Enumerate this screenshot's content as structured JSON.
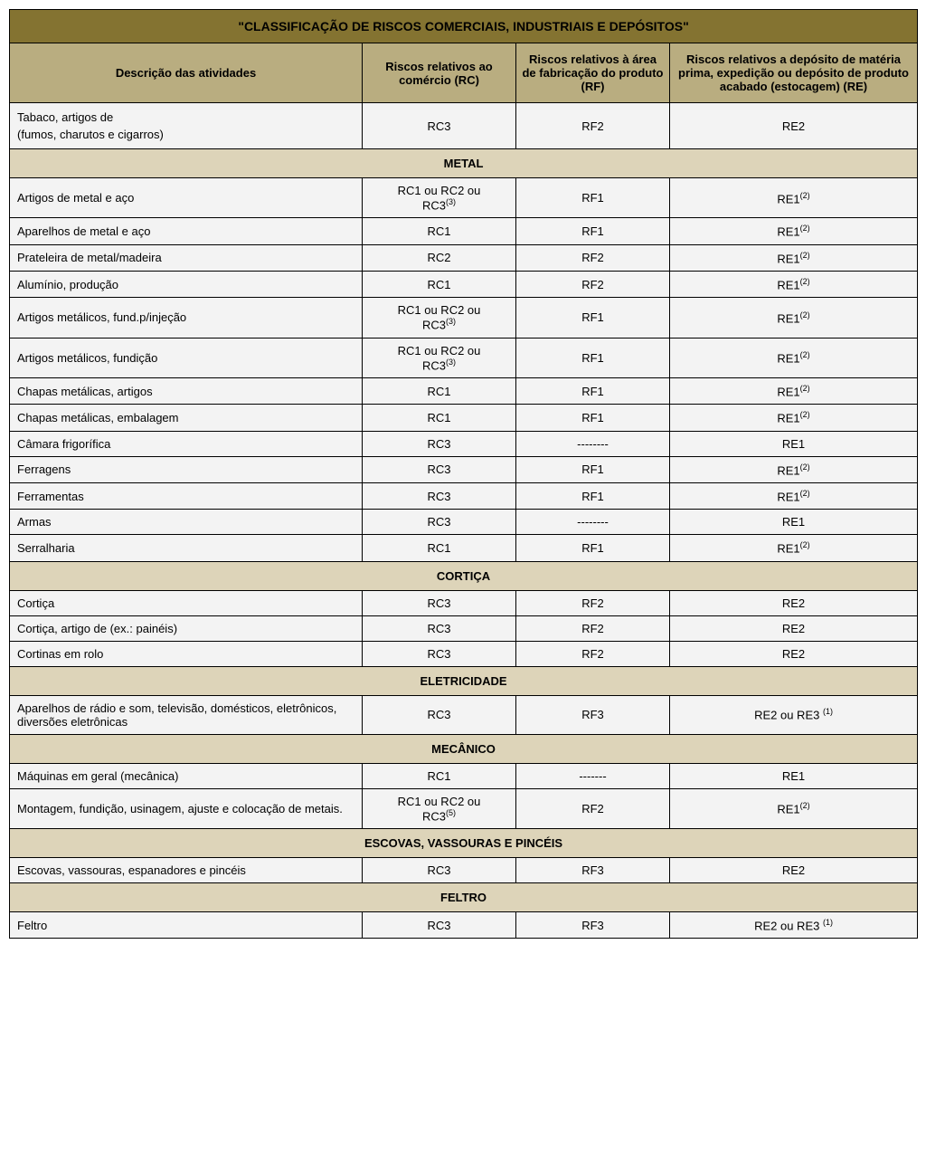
{
  "colors": {
    "title_bg": "#847331",
    "header_bg": "#b9ad80",
    "section_bg": "#ddd4b9",
    "row_bg": "#f3f3f3",
    "border": "#000000",
    "text": "#000000"
  },
  "title": "\"CLASSIFICAÇÃO DE RISCOS COMERCIAIS, INDUSTRIAIS E DEPÓSITOS\"",
  "columns": {
    "desc": "Descrição das atividades",
    "rc": "Riscos relativos ao comércio (RC)",
    "rf": "Riscos relativos à área de fabricação do produto (RF)",
    "re": "Riscos relativos a depósito de matéria prima, expedição ou depósito de produto acabado (estocagem) (RE)"
  },
  "widths": {
    "desc": 390,
    "rc": 170,
    "rf": 170,
    "re": 274
  },
  "body": [
    {
      "type": "row",
      "desc_lines": [
        "Tabaco, artigos de",
        "(fumos, charutos e cigarros)"
      ],
      "rc": "RC3",
      "rf": "RF2",
      "re": "RE2"
    },
    {
      "type": "section",
      "label": "METAL"
    },
    {
      "type": "row",
      "desc": "Artigos de metal e aço",
      "rc_l1": "RC1 ou RC2 ou",
      "rc_l2": "RC3",
      "rc_sup": "(3)",
      "rf": "RF1",
      "re": "RE1",
      "re_sup": "(2)"
    },
    {
      "type": "row",
      "desc": "Aparelhos de metal e aço",
      "rc": "RC1",
      "rf": "RF1",
      "re": "RE1",
      "re_sup": "(2)"
    },
    {
      "type": "row",
      "desc": "Prateleira de metal/madeira",
      "rc": "RC2",
      "rf": "RF2",
      "re": "RE1",
      "re_sup": "(2)"
    },
    {
      "type": "row",
      "desc": "Alumínio, produção",
      "rc": "RC1",
      "rf": "RF2",
      "re": "RE1",
      "re_sup": "(2)"
    },
    {
      "type": "row",
      "desc": "Artigos metálicos, fund.p/injeção",
      "rc_l1": "RC1 ou RC2 ou",
      "rc_l2": "RC3",
      "rc_sup": "(3)",
      "rf": "RF1",
      "re": "RE1",
      "re_sup": "(2)"
    },
    {
      "type": "row",
      "desc": "Artigos metálicos, fundição",
      "rc_l1": "RC1 ou RC2 ou",
      "rc_l2": "RC3",
      "rc_sup": "(3)",
      "rf": "RF1",
      "re": "RE1",
      "re_sup": "(2)"
    },
    {
      "type": "row",
      "desc": "Chapas metálicas, artigos",
      "rc": "RC1",
      "rf": "RF1",
      "re": "RE1",
      "re_sup": "(2)"
    },
    {
      "type": "row",
      "desc": "Chapas metálicas, embalagem",
      "rc": "RC1",
      "rf": "RF1",
      "re": "RE1",
      "re_sup": "(2)"
    },
    {
      "type": "row",
      "desc": "Câmara frigorífica",
      "rc": "RC3",
      "rf": "--------",
      "re": "RE1"
    },
    {
      "type": "row",
      "desc": "Ferragens",
      "rc": "RC3",
      "rf": "RF1",
      "re": "RE1",
      "re_sup": "(2)"
    },
    {
      "type": "row",
      "desc": "Ferramentas",
      "rc": "RC3",
      "rf": "RF1",
      "re": "RE1",
      "re_sup": "(2)"
    },
    {
      "type": "row",
      "desc": "Armas",
      "rc": "RC3",
      "rf": "--------",
      "re": "RE1"
    },
    {
      "type": "row",
      "desc": "Serralharia",
      "rc": "RC1",
      "rf": "RF1",
      "re": "RE1",
      "re_sup": "(2)"
    },
    {
      "type": "section",
      "label": "CORTIÇA"
    },
    {
      "type": "row",
      "desc": "Cortiça",
      "rc": "RC3",
      "rf": "RF2",
      "re": "RE2"
    },
    {
      "type": "row",
      "desc": "Cortiça, artigo de (ex.: painéis)",
      "rc": "RC3",
      "rf": "RF2",
      "re": "RE2"
    },
    {
      "type": "row",
      "desc": "Cortinas em rolo",
      "rc": "RC3",
      "rf": "RF2",
      "re": "RE2"
    },
    {
      "type": "section",
      "label": "ELETRICIDADE"
    },
    {
      "type": "row",
      "desc": "Aparelhos de rádio e som, televisão, domésticos, eletrônicos, diversões eletrônicas",
      "rc": "RC3",
      "rf": "RF3",
      "re": "RE2 ou RE3 ",
      "re_sup": "(1)"
    },
    {
      "type": "section",
      "label": "MECÂNICO"
    },
    {
      "type": "row",
      "desc": "Máquinas em geral (mecânica)",
      "rc": "RC1",
      "rf": "-------",
      "re": "RE1"
    },
    {
      "type": "row",
      "desc": "Montagem, fundição, usinagem, ajuste e colocação de metais.",
      "rc_l1": "RC1 ou RC2 ou",
      "rc_l2": "RC3",
      "rc_sup": "(5)",
      "rf": "RF2",
      "re": "RE1",
      "re_sup": "(2)"
    },
    {
      "type": "section",
      "label": "ESCOVAS, VASSOURAS E PINCÉIS"
    },
    {
      "type": "row",
      "desc": "Escovas, vassouras, espanadores e pincéis",
      "rc": "RC3",
      "rf": "RF3",
      "re": "RE2"
    },
    {
      "type": "section",
      "label": "FELTRO"
    },
    {
      "type": "row",
      "desc": "Feltro",
      "rc": "RC3",
      "rf": "RF3",
      "re": "RE2 ou RE3 ",
      "re_sup": "(1)"
    }
  ]
}
